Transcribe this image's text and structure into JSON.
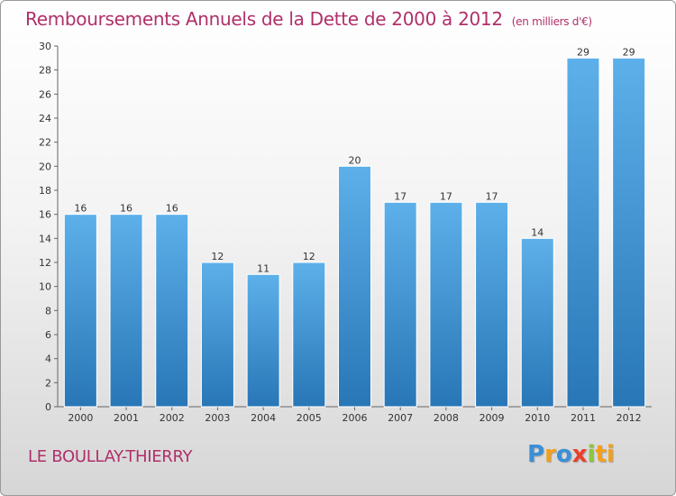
{
  "title": "Remboursements Annuels de la Dette de 2000 à 2012",
  "subtitle": "(en milliers d'€)",
  "commune": "LE BOULLAY-THIERRY",
  "logo_letters": [
    "P",
    "r",
    "o",
    "x",
    "i",
    "ti"
  ],
  "colors": {
    "bar_top": "#5db0ea",
    "bar_bottom": "#2876b6",
    "title": "#b0306a"
  },
  "chart_data": {
    "type": "bar",
    "categories": [
      "2000",
      "2001",
      "2002",
      "2003",
      "2004",
      "2005",
      "2006",
      "2007",
      "2008",
      "2009",
      "2010",
      "2011",
      "2012"
    ],
    "values": [
      16,
      16,
      16,
      12,
      11,
      12,
      20,
      17,
      17,
      17,
      14,
      29,
      29
    ],
    "ylim": [
      0,
      30
    ],
    "yticks": [
      0,
      2,
      4,
      6,
      8,
      10,
      12,
      14,
      16,
      18,
      20,
      22,
      24,
      26,
      28,
      30
    ],
    "grid": false,
    "data_labels": true
  }
}
